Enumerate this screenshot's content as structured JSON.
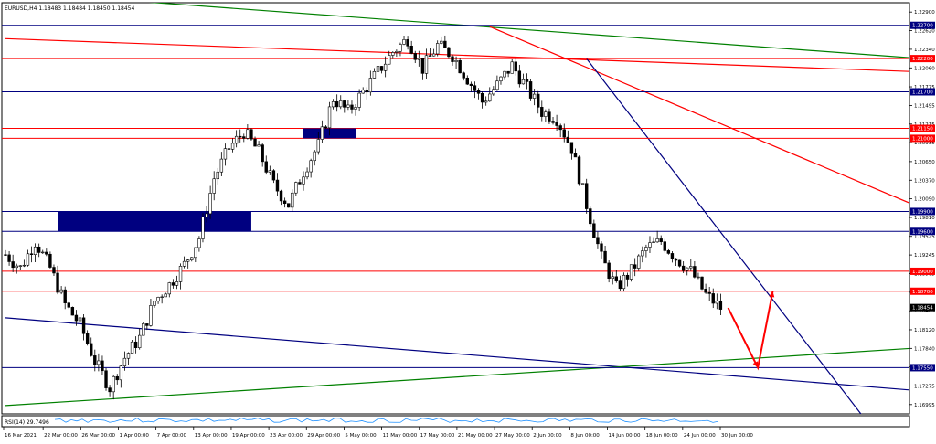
{
  "window": {
    "info_text": "EURUSD,H4  1.18483 1.18484 1.18450 1.18454",
    "indicator_label": "RSI(14) 29.7496"
  },
  "colors": {
    "background": "#ffffff",
    "candle": "#000000",
    "blue_line": "#000080",
    "red_line": "#ff0000",
    "green_line": "#008000",
    "rsi_line": "#1e90ff"
  },
  "chart_data": {
    "type": "candlestick",
    "symbol": "EURUSD",
    "timeframe": "H4",
    "y_ticks": [
      "1.22900",
      "1.22620",
      "1.22340",
      "1.22060",
      "1.21775",
      "1.21495",
      "1.21215",
      "1.20935",
      "1.20650",
      "1.20370",
      "1.20090",
      "1.19810",
      "1.19525",
      "1.19245",
      "1.18965",
      "1.18685",
      "1.18405",
      "1.18120",
      "1.17840",
      "1.17560",
      "1.17275",
      "1.16995"
    ],
    "x_ticks": [
      "16 Mar 2021",
      "22 Mar 00:00",
      "26 Mar 00:00",
      "1 Apr 00:00",
      "7 Apr 00:00",
      "13 Apr 00:00",
      "19 Apr 00:00",
      "23 Apr 00:00",
      "29 Apr 00:00",
      "5 May 00:00",
      "11 May 00:00",
      "17 May 00:00",
      "21 May 00:00",
      "27 May 00:00",
      "2 Jun 00:00",
      "8 Jun 00:00",
      "14 Jun 00:00",
      "18 Jun 00:00",
      "24 Jun 00:00",
      "30 Jun 00:00"
    ],
    "x_tick_index": [
      0,
      4,
      8,
      12,
      16,
      20,
      24,
      28,
      32,
      36,
      40,
      44,
      48,
      52,
      56,
      60,
      64,
      68,
      72,
      76
    ],
    "ylim": [
      1.16855,
      1.2304
    ],
    "n_bars": 114,
    "close_path": [
      [
        0,
        1.1925
      ],
      [
        2,
        1.1905
      ],
      [
        4,
        1.1945
      ],
      [
        6,
        1.1905
      ],
      [
        8,
        1.185
      ],
      [
        10,
        1.182
      ],
      [
        12,
        1.1765
      ],
      [
        14,
        1.1725
      ],
      [
        16,
        1.177
      ],
      [
        18,
        1.18
      ],
      [
        20,
        1.1855
      ],
      [
        22,
        1.188
      ],
      [
        24,
        1.191
      ],
      [
        26,
        1.195
      ],
      [
        28,
        1.204
      ],
      [
        30,
        1.2085
      ],
      [
        32,
        1.211
      ],
      [
        34,
        1.208
      ],
      [
        36,
        1.203
      ],
      [
        38,
        1.2
      ],
      [
        40,
        1.205
      ],
      [
        42,
        1.209
      ],
      [
        44,
        1.216
      ],
      [
        46,
        1.214
      ],
      [
        48,
        1.217
      ],
      [
        50,
        1.22
      ],
      [
        52,
        1.223
      ],
      [
        54,
        1.225
      ],
      [
        56,
        1.2205
      ],
      [
        58,
        1.224
      ],
      [
        60,
        1.2225
      ],
      [
        62,
        1.219
      ],
      [
        64,
        1.2155
      ],
      [
        66,
        1.218
      ],
      [
        68,
        1.221
      ],
      [
        70,
        1.2175
      ],
      [
        72,
        1.214
      ],
      [
        74,
        1.213
      ],
      [
        76,
        1.2085
      ],
      [
        78,
        1.2
      ],
      [
        80,
        1.192
      ],
      [
        82,
        1.1875
      ],
      [
        84,
        1.19
      ],
      [
        86,
        1.1935
      ],
      [
        88,
        1.1945
      ],
      [
        90,
        1.192
      ],
      [
        92,
        1.19
      ],
      [
        94,
        1.1865
      ],
      [
        96,
        1.1845
      ]
    ],
    "levels": [
      {
        "price": "1.22700",
        "color": "blue"
      },
      {
        "price": "1.22200",
        "color": "red"
      },
      {
        "price": "1.21700",
        "color": "blue"
      },
      {
        "price": "1.21150",
        "color": "red"
      },
      {
        "price": "1.21000",
        "color": "red"
      },
      {
        "price": "1.19900",
        "color": "blue"
      },
      {
        "price": "1.19600",
        "color": "blue"
      },
      {
        "price": "1.19000",
        "color": "red"
      },
      {
        "price": "1.18700",
        "color": "red"
      },
      {
        "price": "1.17550",
        "color": "blue"
      }
    ],
    "last_price": "1.18454",
    "zones": [
      {
        "from_bar": 7,
        "to_bar": 33,
        "price_top": 1.199,
        "price_bottom": 1.196,
        "color": "blue"
      },
      {
        "from_bar": 40,
        "to_bar": 47,
        "price_top": 1.2115,
        "price_bottom": 1.21,
        "color": "blue"
      }
    ],
    "trendlines": [
      {
        "color": "green",
        "p1": [
          19,
          1.2305
        ],
        "p2": [
          123,
          1.222
        ]
      },
      {
        "color": "red",
        "p1": [
          0,
          1.225
        ],
        "p2": [
          123,
          1.22
        ]
      },
      {
        "color": "red",
        "p1": [
          65,
          1.2268
        ],
        "p2": [
          123,
          1.1995
        ]
      },
      {
        "color": "blue",
        "p1": [
          78,
          1.222
        ],
        "p2": [
          115,
          1.1683
        ]
      },
      {
        "color": "blue",
        "p1": [
          0,
          1.183
        ],
        "p2": [
          123,
          1.172
        ]
      },
      {
        "color": "green",
        "p1": [
          0,
          1.1698
        ],
        "p2": [
          123,
          1.1785
        ]
      }
    ],
    "projection_arrow": {
      "color": "red",
      "points": [
        [
          97,
          1.1845
        ],
        [
          101,
          1.1755
        ],
        [
          103,
          1.187
        ]
      ]
    }
  }
}
